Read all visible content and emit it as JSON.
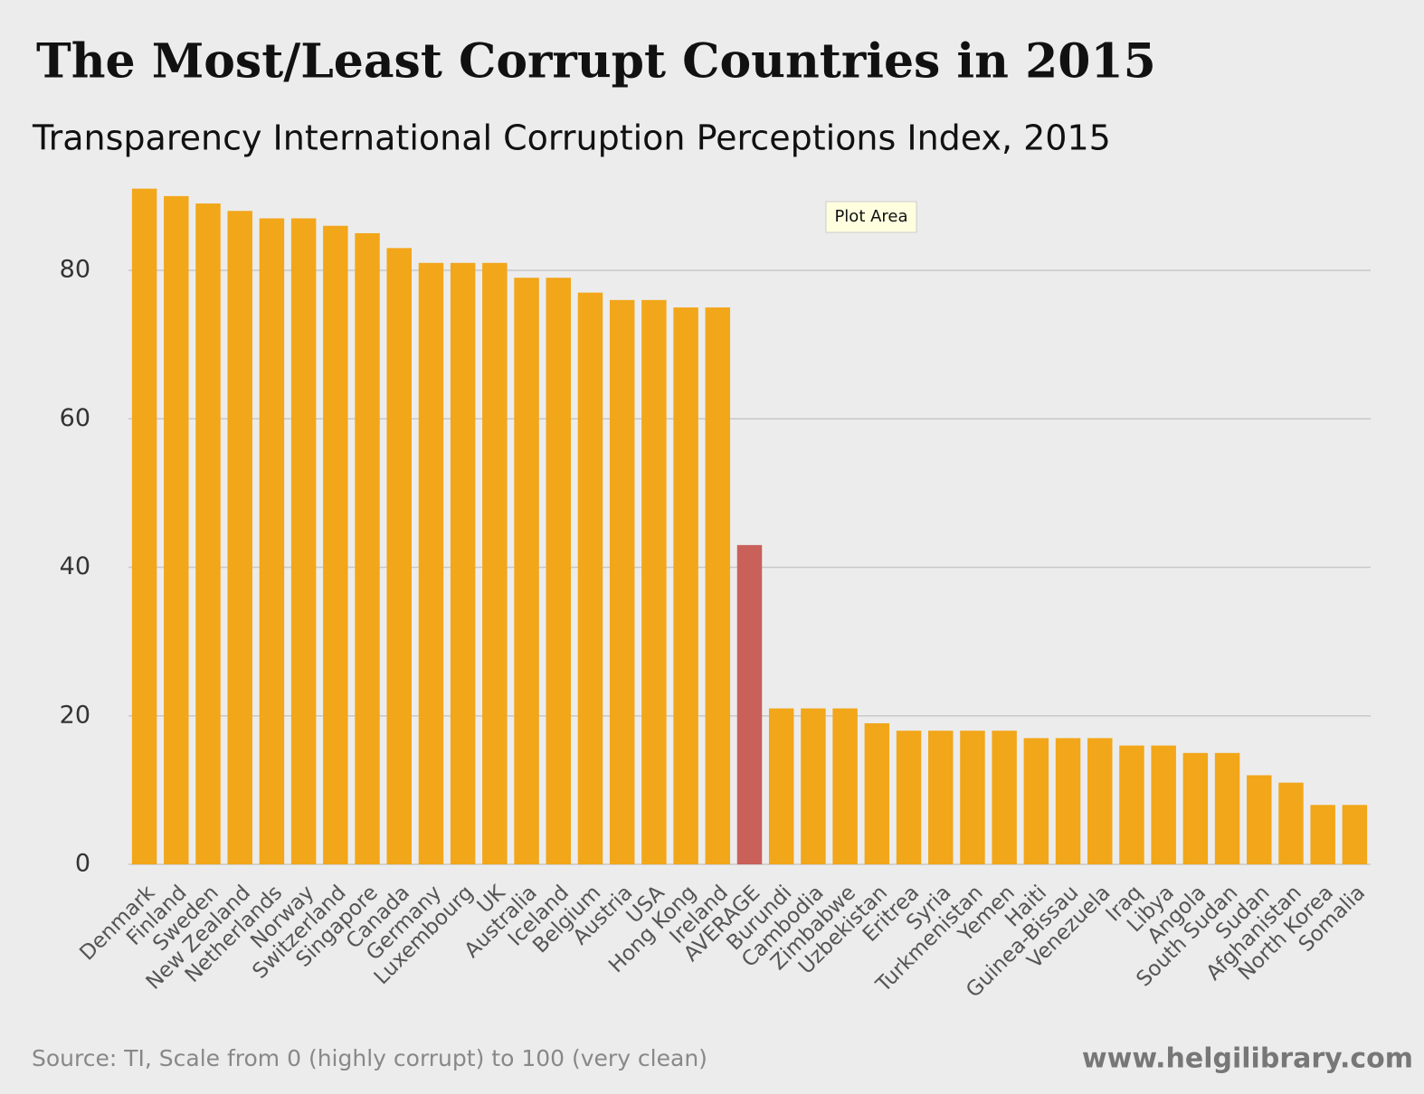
{
  "chart_data": {
    "type": "bar",
    "title": "The Most/Least Corrupt Countries in 2015",
    "subtitle": "Transparency International Corruption Perceptions Index, 2015",
    "source": "Source: TI, Scale from 0 (highly corrupt) to 100 (very clean)",
    "credit": "www.helgilibrary.com",
    "tooltip": "Plot Area",
    "categories": [
      "Denmark",
      "Finland",
      "Sweden",
      "New Zealand",
      "Netherlands",
      "Norway",
      "Switzerland",
      "Singapore",
      "Canada",
      "Germany",
      "Luxembourg",
      "UK",
      "Australia",
      "Iceland",
      "Belgium",
      "Austria",
      "USA",
      "Hong Kong",
      "Ireland",
      "AVERAGE",
      "Burundi",
      "Cambodia",
      "Zimbabwe",
      "Uzbekistan",
      "Eritrea",
      "Syria",
      "Turkmenistan",
      "Yemen",
      "Haiti",
      "Guinea-Bissau",
      "Venezuela",
      "Iraq",
      "Libya",
      "Angola",
      "South Sudan",
      "Sudan",
      "Afghanistan",
      "North Korea",
      "Somalia"
    ],
    "values": [
      91,
      90,
      89,
      88,
      87,
      87,
      86,
      85,
      83,
      81,
      81,
      81,
      79,
      79,
      77,
      76,
      76,
      75,
      75,
      43,
      21,
      21,
      21,
      19,
      18,
      18,
      18,
      18,
      17,
      17,
      17,
      16,
      16,
      15,
      15,
      12,
      11,
      8,
      8
    ],
    "colors": [
      "#f2a619",
      "#f2a619",
      "#f2a619",
      "#f2a619",
      "#f2a619",
      "#f2a619",
      "#f2a619",
      "#f2a619",
      "#f2a619",
      "#f2a619",
      "#f2a619",
      "#f2a619",
      "#f2a619",
      "#f2a619",
      "#f2a619",
      "#f2a619",
      "#f2a619",
      "#f2a619",
      "#f2a619",
      "#c9605a",
      "#f2a619",
      "#f2a619",
      "#f2a619",
      "#f2a619",
      "#f2a619",
      "#f2a619",
      "#f2a619",
      "#f2a619",
      "#f2a619",
      "#f2a619",
      "#f2a619",
      "#f2a619",
      "#f2a619",
      "#f2a619",
      "#f2a619",
      "#f2a619",
      "#f2a619",
      "#f2a619",
      "#f2a619"
    ],
    "ylim": [
      0,
      92
    ],
    "yticks": [
      0,
      20,
      40,
      60,
      80
    ],
    "grid": true
  }
}
